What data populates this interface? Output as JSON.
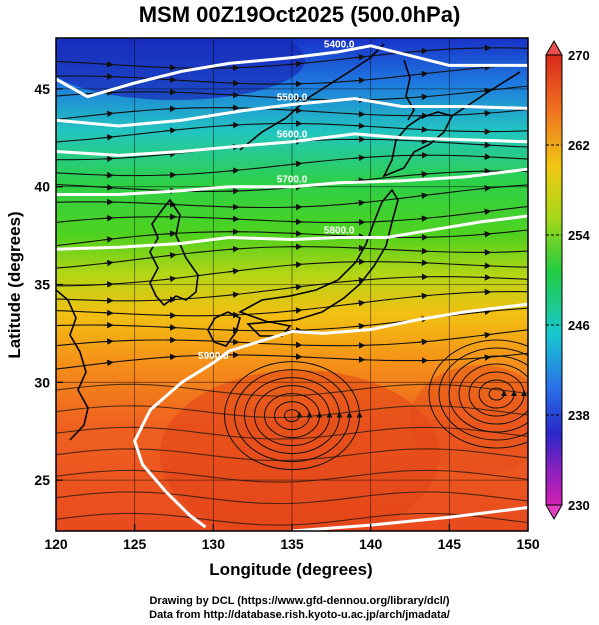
{
  "title": "MSM 00Z19Oct2025 (500.0hPa)",
  "axes": {
    "xlabel": "Longitude (degrees)",
    "ylabel": "Latitude  (degrees)",
    "x_ticks": [
      "120",
      "125",
      "130",
      "135",
      "140",
      "145",
      "150"
    ],
    "y_ticks": [
      "25",
      "30",
      "35",
      "40",
      "45"
    ],
    "xlim": [
      120,
      150
    ],
    "ylim": [
      22.4,
      47.6
    ]
  },
  "colorbar": {
    "tick_labels": [
      "270",
      "262",
      "254",
      "246",
      "238",
      "230"
    ],
    "range": [
      230,
      270
    ]
  },
  "contour_labels": [
    "5400.0",
    "5500.0",
    "5600.0",
    "5700.0",
    "5800.0",
    "5900.0"
  ],
  "credits": {
    "line1": "Drawing by DCL (https://www.gfd-dennou.org/library/dcl/)",
    "line2": "Data from http://database.rish.kyoto-u.ac.jp/arch/jmadata/"
  },
  "chart_data": {
    "type": "heatmap",
    "title": "MSM 00Z19Oct2025 (500.0hPa)",
    "xlabel": "Longitude (degrees)",
    "ylabel": "Latitude  (degrees)",
    "xlim": [
      120,
      150
    ],
    "ylim": [
      22.4,
      47.6
    ],
    "color_range": [
      230,
      270
    ],
    "contours": [
      {
        "label": "5400.0",
        "points": [
          [
            120,
            45.5
          ],
          [
            122,
            44.6
          ],
          [
            125,
            45.3
          ],
          [
            128,
            45.9
          ],
          [
            131,
            46.3
          ],
          [
            135,
            46.6
          ],
          [
            138,
            46.9
          ],
          [
            140,
            47.2
          ],
          [
            143,
            46.6
          ],
          [
            145,
            46.2
          ],
          [
            148,
            46.2
          ],
          [
            150,
            46.2
          ]
        ]
      },
      {
        "label": "5500.0",
        "points": [
          [
            120,
            43.4
          ],
          [
            124,
            43.1
          ],
          [
            128,
            43.4
          ],
          [
            132,
            43.9
          ],
          [
            135,
            44.2
          ],
          [
            139,
            44.5
          ],
          [
            142,
            44.1
          ],
          [
            146,
            44.1
          ],
          [
            150,
            44.0
          ]
        ]
      },
      {
        "label": "5600.0",
        "points": [
          [
            120,
            41.8
          ],
          [
            124,
            41.6
          ],
          [
            128,
            41.8
          ],
          [
            132,
            42.1
          ],
          [
            135,
            42.3
          ],
          [
            139,
            42.7
          ],
          [
            142,
            42.5
          ],
          [
            146,
            42.4
          ],
          [
            150,
            42.3
          ]
        ]
      },
      {
        "label": "5700.0",
        "points": [
          [
            120,
            39.6
          ],
          [
            124,
            39.6
          ],
          [
            128,
            39.8
          ],
          [
            131,
            40.0
          ],
          [
            135,
            40.0
          ],
          [
            138,
            40.2
          ],
          [
            142,
            40.3
          ],
          [
            146,
            40.5
          ],
          [
            150,
            40.9
          ]
        ]
      },
      {
        "label": "5800.0",
        "points": [
          [
            120,
            36.8
          ],
          [
            124,
            36.9
          ],
          [
            128,
            37.1
          ],
          [
            131,
            37.4
          ],
          [
            135,
            37.3
          ],
          [
            138,
            37.4
          ],
          [
            141,
            37.4
          ],
          [
            144,
            37.8
          ],
          [
            147,
            38.2
          ],
          [
            150,
            38.5
          ]
        ]
      },
      {
        "label": "5900.0",
        "points": [
          [
            150,
            34.0
          ],
          [
            146,
            33.6
          ],
          [
            143,
            33.2
          ],
          [
            140,
            32.7
          ],
          [
            137,
            32.5
          ],
          [
            135,
            32.6
          ],
          [
            133,
            32.1
          ],
          [
            131,
            31.6
          ],
          [
            130,
            31.0
          ],
          [
            128,
            30.0
          ],
          [
            126,
            28.6
          ],
          [
            125,
            27.0
          ],
          [
            125.5,
            25.8
          ],
          [
            127,
            24.4
          ],
          [
            128.5,
            23.2
          ],
          [
            129.5,
            22.6
          ]
        ]
      },
      {
        "label": "",
        "points": [
          [
            135,
            22.4
          ],
          [
            140,
            22.7
          ],
          [
            145,
            23.1
          ],
          [
            150,
            23.6
          ]
        ]
      }
    ],
    "vortices": [
      {
        "name": "",
        "lon": 135.0,
        "lat": 28.3
      },
      {
        "name": "",
        "lon": 148.0,
        "lat": 29.4
      }
    ]
  }
}
